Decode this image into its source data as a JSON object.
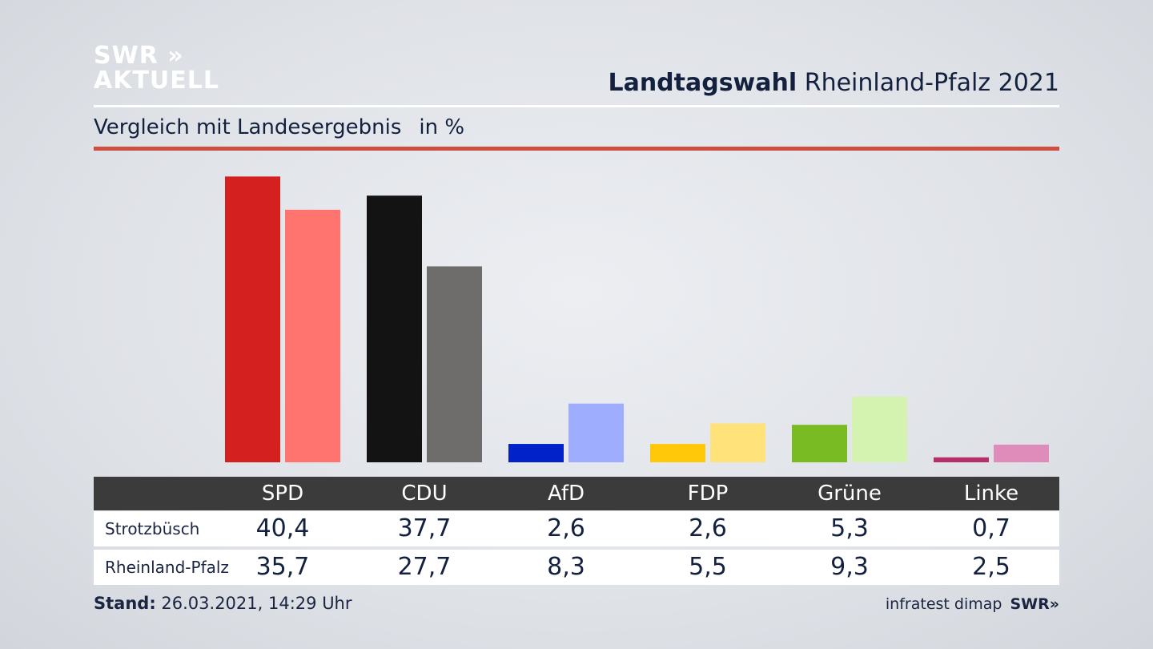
{
  "logo": {
    "line1": "SWR »",
    "line2": "AKTUELL"
  },
  "header": {
    "title_bold": "Landtagswahl",
    "title_rest": "Rheinland-Pfalz 2021"
  },
  "subtitle": {
    "text": "Vergleich mit Landesergebnis",
    "unit": "in %"
  },
  "colors": {
    "title_rule": "#ffffff",
    "accent_rule": "#cf4e3f",
    "table_header_bg": "#3b3b3b"
  },
  "chart_data": {
    "type": "bar",
    "categories": [
      "SPD",
      "CDU",
      "AfD",
      "FDP",
      "Grüne",
      "Linke"
    ],
    "series": [
      {
        "name": "Strotzbüsch",
        "values": [
          40.4,
          37.7,
          2.6,
          2.6,
          5.3,
          0.7
        ],
        "colors": [
          "#d52020",
          "#131313",
          "#0022c8",
          "#ffc90a",
          "#78bb22",
          "#b5306a"
        ]
      },
      {
        "name": "Rheinland-Pfalz",
        "values": [
          35.7,
          27.7,
          8.3,
          5.5,
          9.3,
          2.5
        ],
        "colors": [
          "#ff746e",
          "#6f6d6c",
          "#9eadfd",
          "#ffe27a",
          "#d5f3b0",
          "#e08cba"
        ]
      }
    ],
    "value_strings": [
      [
        "40,4",
        "37,7",
        "2,6",
        "2,6",
        "5,3",
        "0,7"
      ],
      [
        "35,7",
        "27,7",
        "8,3",
        "5,5",
        "9,3",
        "2,5"
      ]
    ],
    "ylim": [
      0,
      41
    ]
  },
  "footer": {
    "stand_label": "Stand:",
    "stand_value": "26.03.2021, 14:29 Uhr",
    "source": "infratest dimap",
    "brand": "SWR»"
  }
}
